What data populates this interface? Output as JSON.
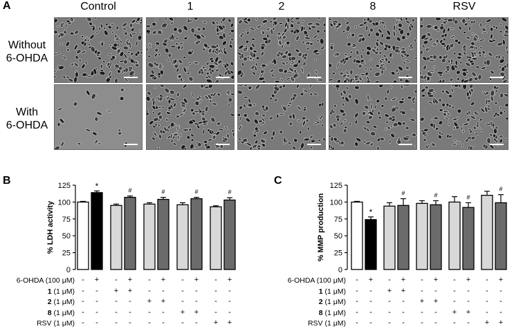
{
  "panel_a": {
    "letter": "A",
    "columns": [
      "Control",
      "1",
      "2",
      "8",
      "RSV"
    ],
    "rows": [
      {
        "line1": "Without",
        "line2": "6-OHDA"
      },
      {
        "line1": "With",
        "line2": "6-OHDA"
      }
    ]
  },
  "colors": {
    "white_bar": "#ffffff",
    "black_bar": "#000000",
    "light_bar": "#d8d8d8",
    "dark_bar": "#6b6b6b"
  },
  "treatment_table": {
    "rows": [
      {
        "label": "6-OHDA (100 μM)",
        "bold_prefix": "",
        "signs": [
          "-",
          "+",
          "-",
          "+",
          "-",
          "+",
          "-",
          "+",
          "-",
          "+"
        ]
      },
      {
        "label": " (1 μM)",
        "bold_prefix": "1",
        "signs": [
          "-",
          "-",
          "+",
          "+",
          "-",
          "-",
          "-",
          "-",
          "-",
          "-"
        ]
      },
      {
        "label": " (1 μM)",
        "bold_prefix": "2",
        "signs": [
          "-",
          "-",
          "-",
          "-",
          "+",
          "+",
          "-",
          "-",
          "-",
          "-"
        ]
      },
      {
        "label": " (1 μM)",
        "bold_prefix": "8",
        "signs": [
          "-",
          "-",
          "-",
          "-",
          "-",
          "-",
          "+",
          "+",
          "-",
          "-"
        ]
      },
      {
        "label": "RSV (1 μM)",
        "bold_prefix": "",
        "signs": [
          "-",
          "-",
          "-",
          "-",
          "-",
          "-",
          "-",
          "-",
          "+",
          "+"
        ]
      }
    ]
  },
  "chart_data": [
    {
      "type": "bar",
      "panel": "B",
      "ylabel": "% LDH activity",
      "ylim": [
        0,
        125
      ],
      "yticks": [
        "0",
        "25",
        "50",
        "75",
        "100",
        "125"
      ],
      "values": [
        100,
        114,
        95,
        107,
        97,
        104,
        96,
        105,
        93,
        103
      ],
      "errors": [
        1,
        2.5,
        2,
        2,
        2,
        3,
        3,
        2,
        1.5,
        3.5
      ],
      "fills": [
        "white",
        "black",
        "light",
        "dark",
        "light",
        "dark",
        "light",
        "dark",
        "light",
        "dark"
      ],
      "annotations": [
        "",
        "*",
        "",
        "#",
        "",
        "#",
        "",
        "#",
        "",
        "#"
      ]
    },
    {
      "type": "bar",
      "panel": "C",
      "ylabel": "% MMP production",
      "ylim": [
        0,
        125
      ],
      "yticks": [
        "0",
        "25",
        "50",
        "75",
        "100",
        "125"
      ],
      "values": [
        100,
        74,
        94,
        95,
        98,
        96,
        100,
        92,
        110,
        99
      ],
      "errors": [
        1,
        4,
        5,
        10,
        4,
        6,
        8,
        7,
        6,
        12
      ],
      "fills": [
        "white",
        "black",
        "light",
        "dark",
        "light",
        "dark",
        "light",
        "dark",
        "light",
        "dark"
      ],
      "annotations": [
        "",
        "*",
        "",
        "#",
        "",
        "#",
        "",
        "#",
        "",
        "#"
      ]
    }
  ]
}
